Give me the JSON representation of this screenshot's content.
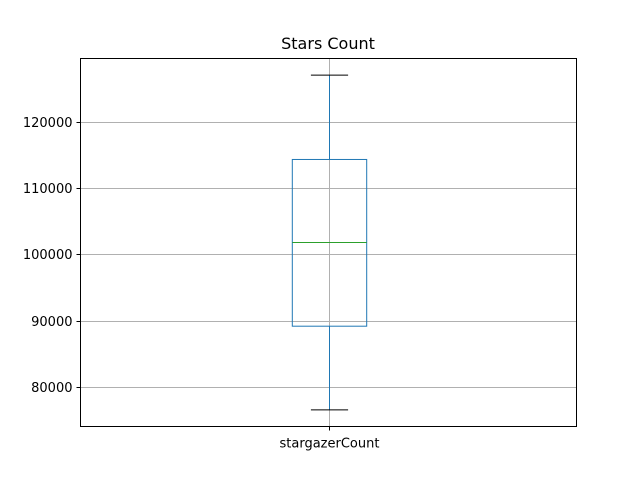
{
  "chart_data": {
    "type": "box",
    "title": "Stars Count",
    "categories": [
      "stargazerCount"
    ],
    "boxes": [
      {
        "name": "stargazerCount",
        "whisker_low": 76600,
        "q1": 89200,
        "median": 101800,
        "q3": 114300,
        "whisker_high": 127000
      }
    ],
    "yticks": [
      80000,
      90000,
      100000,
      110000,
      120000
    ],
    "ytick_labels": [
      "80000",
      "90000",
      "100000",
      "110000",
      "120000"
    ],
    "ylim": [
      74100,
      129500
    ],
    "grid": true,
    "colors": {
      "box": "#1f77b4",
      "median": "#2ca02c",
      "caps": "#000000",
      "grid": "#b0b0b0"
    }
  }
}
